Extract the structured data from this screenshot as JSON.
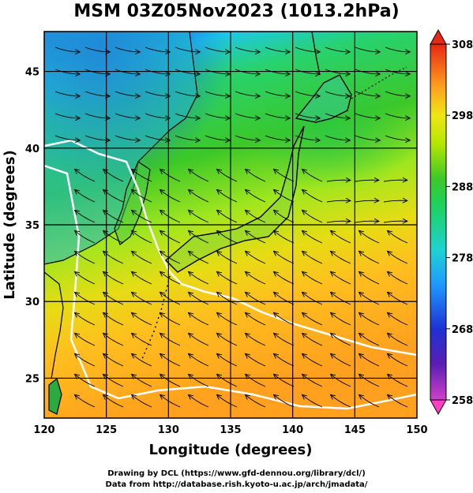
{
  "title": "MSM 03Z05Nov2023 (1013.2hPa)",
  "axes": {
    "xlabel": "Longitude (degrees)",
    "ylabel": "Latitude  (degrees)",
    "xticks": [
      120,
      125,
      130,
      135,
      140,
      145,
      150
    ],
    "yticks": [
      25,
      30,
      35,
      40,
      45
    ],
    "xlim": [
      120,
      150
    ],
    "ylim": [
      22.4,
      47.6
    ]
  },
  "colorbar": {
    "ticks": [
      308,
      298,
      288,
      278,
      268,
      258
    ],
    "range": [
      258,
      308
    ],
    "colors": [
      "#ff3cc8",
      "#8c1eb4",
      "#1e28c8",
      "#1e78ff",
      "#1ec8e6",
      "#1ee68c",
      "#28c828",
      "#a0e600",
      "#f0e614",
      "#ffb41e",
      "#ff6e14",
      "#e62814"
    ]
  },
  "credits": {
    "line1": "Drawing by DCL (https://www.gfd-dennou.org/library/dcl/)",
    "line2": "Data from http://database.rish.kyoto-u.ac.jp/arch/jmadata/"
  }
}
